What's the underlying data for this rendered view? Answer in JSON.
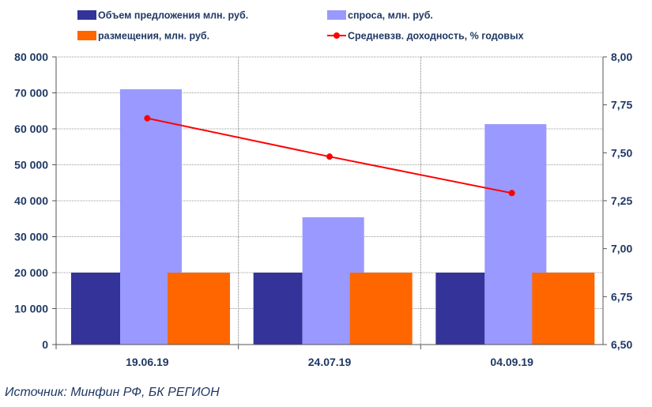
{
  "chart_data": {
    "type": "bar",
    "categories": [
      "19.06.19",
      "24.07.19",
      "04.09.19"
    ],
    "series": [
      {
        "name": "Объем предложения млн. руб.",
        "type": "bar",
        "axis": "left",
        "color": "#333399",
        "values": [
          20000,
          20000,
          20000
        ]
      },
      {
        "name": "спроса, млн. руб.",
        "type": "bar",
        "axis": "left",
        "color": "#9999ff",
        "values": [
          71000,
          35400,
          61300
        ]
      },
      {
        "name": "размещения, млн. руб.",
        "type": "bar",
        "axis": "left",
        "color": "#ff6600",
        "values": [
          20000,
          20000,
          20000
        ]
      },
      {
        "name": "Средневзв. доходность, % годовых",
        "type": "line",
        "axis": "right",
        "color": "#ff0000",
        "values": [
          7.68,
          7.48,
          7.29
        ]
      }
    ],
    "ylim": [
      0,
      80000
    ],
    "y_ticks": [
      "0",
      "10 000",
      "20 000",
      "30 000",
      "40 000",
      "50 000",
      "60 000",
      "70 000",
      "80 000"
    ],
    "y2lim": [
      6.5,
      8.0
    ],
    "y2_ticks": [
      "6,50",
      "6,75",
      "7,00",
      "7,25",
      "7,50",
      "7,75",
      "8,00"
    ],
    "grid": true,
    "legend_position": "top"
  },
  "source": "Источник: Минфин РФ, БК РЕГИОН"
}
